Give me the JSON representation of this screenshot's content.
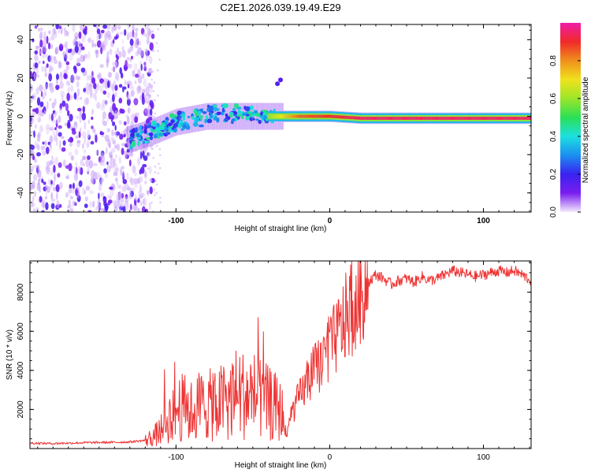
{
  "chart_data": [
    {
      "type": "heatmap",
      "title": "C2E1.2026.039.19.49.E29",
      "xlabel": "Height of straight line (km)",
      "ylabel": "Frequency (Hz)",
      "xlim": [
        -195,
        131
      ],
      "ylim": [
        -50,
        48
      ],
      "x_ticks": [
        -100,
        0,
        100
      ],
      "x_tick_labels": [
        "-100",
        "0",
        "100"
      ],
      "y_ticks": [
        -40,
        -20,
        0,
        20,
        40
      ],
      "y_tick_labels": [
        "-40",
        "-20",
        "0",
        "20",
        "40"
      ],
      "colorbar": {
        "label": "Normalized spectral amplitude",
        "range": [
          0,
          1
        ],
        "ticks": [
          0.0,
          0.2,
          0.4,
          0.6,
          0.8
        ],
        "tick_labels": [
          "0.0",
          "0.2",
          "0.4",
          "0.6",
          "0.8"
        ],
        "colormap": [
          "#f4eafc",
          "#7a1ef0",
          "#3a22f0",
          "#1b8ff0",
          "#1ce0e0",
          "#2ae055",
          "#9be62a",
          "#f0e21c",
          "#f0901c",
          "#f02a2a",
          "#f01ca8"
        ]
      },
      "features": [
        {
          "name": "noise-region",
          "x_range": [
            -195,
            -115
          ],
          "freq_range": [
            -50,
            48
          ],
          "amplitude": 0.15
        },
        {
          "name": "rising-trace",
          "x": [
            -130,
            -115,
            -100,
            -80,
            -60,
            -40,
            -20,
            0,
            20,
            60,
            100,
            131
          ],
          "freq": [
            -12,
            -8,
            -3,
            0,
            0,
            0,
            0,
            0,
            -1,
            -1,
            -1,
            -1
          ],
          "amplitude": [
            0.35,
            0.4,
            0.4,
            0.4,
            0.4,
            0.6,
            0.85,
            0.9,
            0.95,
            0.95,
            0.95,
            0.95
          ]
        }
      ]
    },
    {
      "type": "line",
      "xlabel": "Height of straight line (km)",
      "ylabel": "SNR (10 * v/v)",
      "xlim": [
        -195,
        131
      ],
      "ylim": [
        0,
        9600
      ],
      "x_ticks": [
        -100,
        0,
        100
      ],
      "x_tick_labels": [
        "-100",
        "0",
        "100"
      ],
      "y_ticks": [
        2000,
        4000,
        6000,
        8000
      ],
      "y_tick_labels": [
        "2000",
        "4000",
        "6000",
        "8000"
      ],
      "series": [
        {
          "name": "SNR",
          "color": "#ee3333",
          "x": [
            -195,
            -180,
            -160,
            -140,
            -130,
            -120,
            -115,
            -110,
            -105,
            -100,
            -95,
            -90,
            -85,
            -80,
            -75,
            -70,
            -65,
            -60,
            -55,
            -50,
            -45,
            -40,
            -35,
            -31,
            -28,
            -25,
            -20,
            -15,
            -10,
            -5,
            0,
            5,
            10,
            15,
            20,
            25,
            30,
            35,
            40,
            45,
            50,
            55,
            60,
            65,
            70,
            75,
            80,
            85,
            90,
            95,
            100,
            105,
            110,
            115,
            120,
            125,
            131
          ],
          "y": [
            280,
            260,
            300,
            320,
            340,
            420,
            600,
            900,
            1500,
            2000,
            2100,
            1900,
            2200,
            2300,
            2100,
            2400,
            2600,
            2900,
            2700,
            2800,
            2500,
            2300,
            2100,
            1800,
            600,
            1800,
            2600,
            3300,
            4000,
            4500,
            5100,
            5800,
            6600,
            7300,
            8000,
            8500,
            8900,
            8700,
            8400,
            8600,
            8700,
            8500,
            8800,
            8600,
            8700,
            8900,
            9100,
            9000,
            8900,
            8800,
            8900,
            9000,
            9100,
            9000,
            9100,
            8900,
            8600
          ]
        }
      ]
    }
  ]
}
